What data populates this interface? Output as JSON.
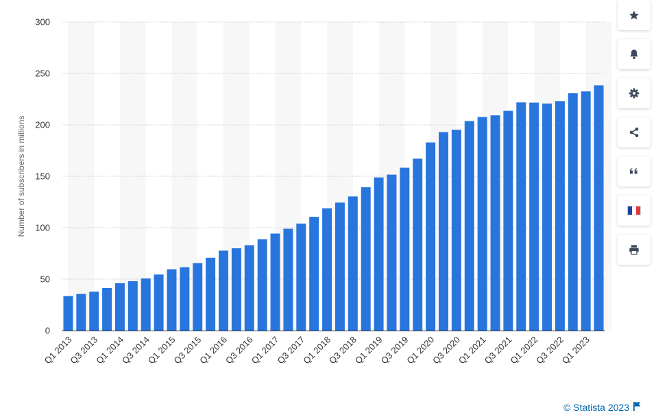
{
  "chart_data": {
    "type": "bar",
    "title": "",
    "xlabel": "",
    "ylabel": "Number of subscribers in millions",
    "ylim": [
      0,
      300
    ],
    "yticks": [
      0,
      50,
      100,
      150,
      200,
      250,
      300
    ],
    "grid": true,
    "bar_color": "#2876dd",
    "categories": [
      "Q1 2013",
      "Q2 2013",
      "Q3 2013",
      "Q4 2013",
      "Q1 2014",
      "Q2 2014",
      "Q3 2014",
      "Q4 2014",
      "Q1 2015",
      "Q2 2015",
      "Q3 2015",
      "Q4 2015",
      "Q1 2016",
      "Q2 2016",
      "Q3 2016",
      "Q4 2016",
      "Q1 2017",
      "Q2 2017",
      "Q3 2017",
      "Q4 2017",
      "Q1 2018",
      "Q2 2018",
      "Q3 2018",
      "Q4 2018",
      "Q1 2019",
      "Q2 2019",
      "Q3 2019",
      "Q4 2019",
      "Q1 2020",
      "Q2 2020",
      "Q3 2020",
      "Q4 2020",
      "Q1 2021",
      "Q2 2021",
      "Q3 2021",
      "Q4 2021",
      "Q1 2022",
      "Q2 2022",
      "Q3 2022",
      "Q4 2022",
      "Q1 2023",
      "Q2 2023"
    ],
    "tick_labels": [
      "Q1 2013",
      "Q3 2013",
      "Q1 2014",
      "Q3 2014",
      "Q1 2015",
      "Q3 2015",
      "Q1 2016",
      "Q3 2016",
      "Q1 2017",
      "Q3 2017",
      "Q1 2018",
      "Q3 2018",
      "Q1 2019",
      "Q3 2019",
      "Q1 2020",
      "Q3 2020",
      "Q1 2021",
      "Q3 2021",
      "Q1 2022",
      "Q3 2022",
      "Q1 2023"
    ],
    "values": [
      33.5,
      35.6,
      37.8,
      41.4,
      46.0,
      48.0,
      50.7,
      54.5,
      59.6,
      61.6,
      65.6,
      70.8,
      77.7,
      80.0,
      83.0,
      88.7,
      94.3,
      99.0,
      104.0,
      110.6,
      118.9,
      124.4,
      130.4,
      139.3,
      148.9,
      151.6,
      158.3,
      167.1,
      182.9,
      192.9,
      195.2,
      203.7,
      207.6,
      209.2,
      213.6,
      221.8,
      221.6,
      220.7,
      223.1,
      230.7,
      232.5,
      238.4
    ]
  },
  "sidebar": {
    "buttons": [
      {
        "name": "favorite-button",
        "icon": "star-icon"
      },
      {
        "name": "notification-button",
        "icon": "bell-icon"
      },
      {
        "name": "settings-button",
        "icon": "gear-icon"
      },
      {
        "name": "share-button",
        "icon": "share-icon"
      },
      {
        "name": "cite-button",
        "icon": "quote-icon"
      },
      {
        "name": "language-button",
        "icon": "french-flag-icon"
      },
      {
        "name": "print-button",
        "icon": "printer-icon"
      }
    ]
  },
  "footer": {
    "credit": "© Statista 2023"
  },
  "colors": {
    "accent": "#2876dd",
    "credit": "#0066ab",
    "icon": "#3c4a5c"
  }
}
